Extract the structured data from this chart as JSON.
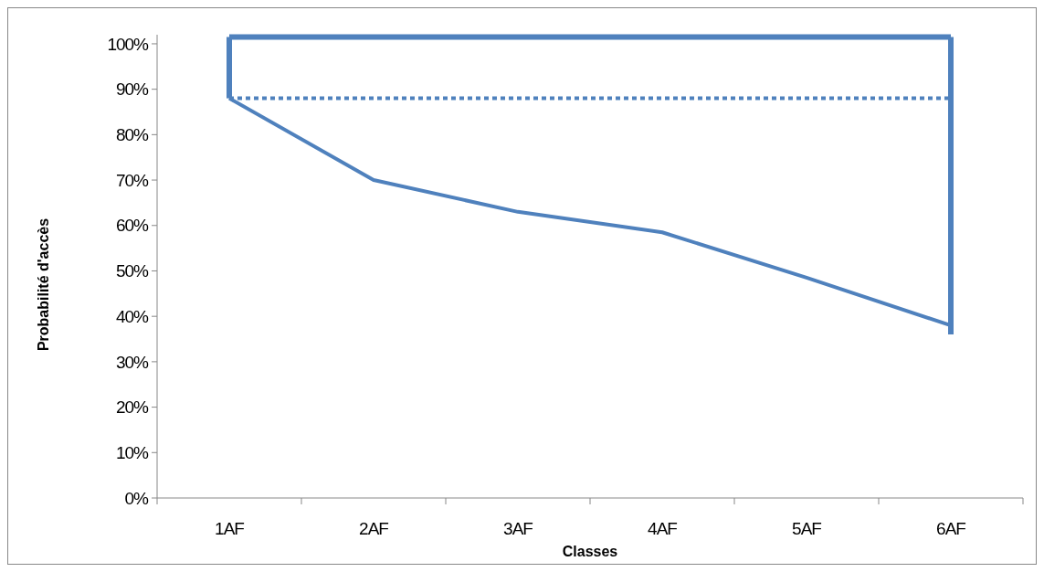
{
  "chart_data": {
    "type": "line",
    "xlabel": "Classes",
    "ylabel": "Probabilité d'accès",
    "categories": [
      "1AF",
      "2AF",
      "3AF",
      "4AF",
      "5AF",
      "6AF"
    ],
    "ylim": [
      0,
      102
    ],
    "yticks": [
      {
        "value": 0,
        "label": "0%"
      },
      {
        "value": 10,
        "label": "10%"
      },
      {
        "value": 20,
        "label": "20%"
      },
      {
        "value": 30,
        "label": "30%"
      },
      {
        "value": 40,
        "label": "40%"
      },
      {
        "value": 50,
        "label": "50%"
      },
      {
        "value": 60,
        "label": "60%"
      },
      {
        "value": 70,
        "label": "70%"
      },
      {
        "value": 80,
        "label": "80%"
      },
      {
        "value": 90,
        "label": "90%"
      },
      {
        "value": 100,
        "label": "100%"
      }
    ],
    "grid": false,
    "marker": "none",
    "series": [
      {
        "color": "#4f81bd",
        "values": [
          88,
          70,
          63,
          58.5,
          48.5,
          38
        ],
        "line_style": "solid"
      },
      {
        "color": "#4f81bd",
        "values": [
          88,
          88,
          88,
          88,
          88,
          88
        ],
        "line_style": "dotted"
      },
      {
        "color": "#4f81bd",
        "values": [
          101.5,
          101.5,
          101.5,
          101.5,
          101.5,
          101.5
        ],
        "line_style": "solid"
      },
      {
        "color": "#4f81bd",
        "x": [
          "1AF",
          "1AF"
        ],
        "values": [
          88,
          101.5
        ],
        "line_style": "solid"
      },
      {
        "color": "#4f81bd",
        "x": [
          "6AF",
          "6AF"
        ],
        "values": [
          101.5,
          36
        ],
        "line_style": "solid"
      }
    ]
  }
}
